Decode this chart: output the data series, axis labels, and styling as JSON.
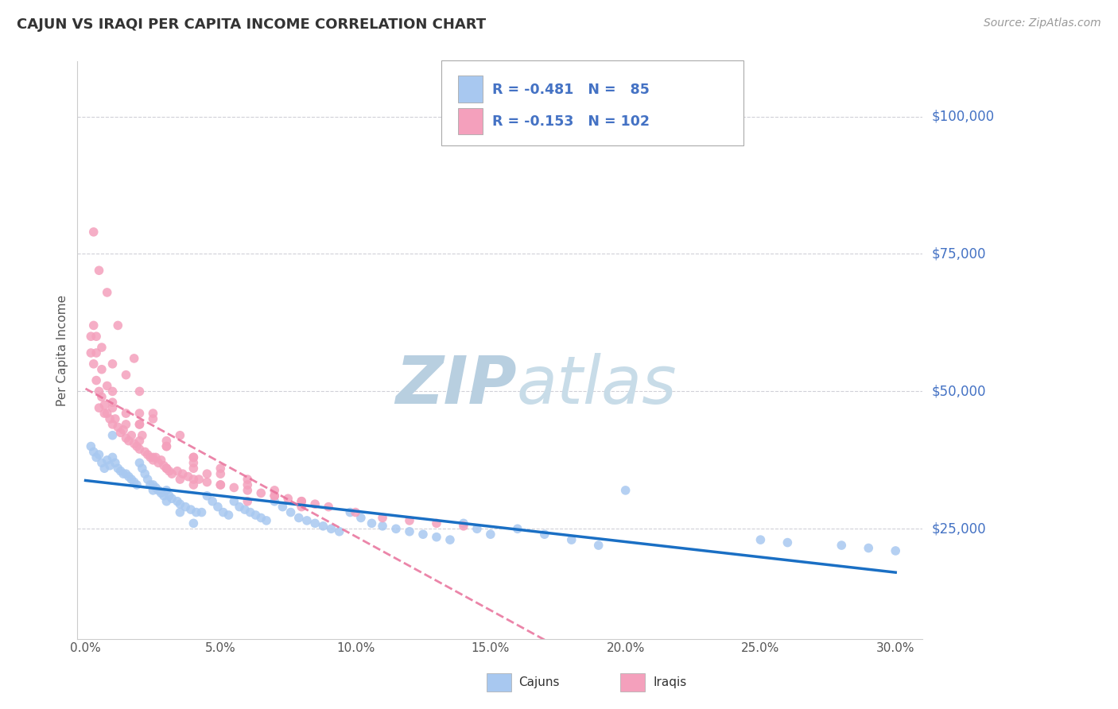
{
  "title": "CAJUN VS IRAQI PER CAPITA INCOME CORRELATION CHART",
  "source": "Source: ZipAtlas.com",
  "ylabel": "Per Capita Income",
  "xlabel_ticks": [
    "0.0%",
    "5.0%",
    "10.0%",
    "15.0%",
    "20.0%",
    "25.0%",
    "30.0%"
  ],
  "xlabel_vals": [
    0.0,
    5.0,
    10.0,
    15.0,
    20.0,
    25.0,
    30.0
  ],
  "xlim": [
    -0.3,
    31.0
  ],
  "ylim": [
    5000,
    110000
  ],
  "yticks": [
    25000,
    50000,
    75000,
    100000
  ],
  "ytick_labels": [
    "$25,000",
    "$50,000",
    "$75,000",
    "$100,000"
  ],
  "cajun_color": "#a8c8f0",
  "iraqi_color": "#f4a0bc",
  "cajun_line_color": "#1a6fc4",
  "iraqi_line_color": "#e8709a",
  "legend_text_color": "#4472c4",
  "axis_label_color": "#4472c4",
  "grid_color": "#d0d0d8",
  "watermark_zip": "ZIP",
  "watermark_atlas": "atlas",
  "watermark_color_zip": "#c0d4e8",
  "watermark_color_atlas": "#c8dce8",
  "R_cajun": -0.481,
  "N_cajun": 85,
  "R_iraqi": -0.153,
  "N_iraqi": 102,
  "cajun_x": [
    0.2,
    0.3,
    0.4,
    0.5,
    0.6,
    0.7,
    0.8,
    0.9,
    1.0,
    1.0,
    1.1,
    1.2,
    1.3,
    1.4,
    1.5,
    1.6,
    1.7,
    1.8,
    1.9,
    2.0,
    2.1,
    2.2,
    2.3,
    2.4,
    2.5,
    2.6,
    2.7,
    2.8,
    2.9,
    3.0,
    3.1,
    3.2,
    3.4,
    3.5,
    3.7,
    3.9,
    4.1,
    4.3,
    4.5,
    4.7,
    4.9,
    5.1,
    5.3,
    5.5,
    5.7,
    5.9,
    6.1,
    6.3,
    6.5,
    6.7,
    7.0,
    7.3,
    7.6,
    7.9,
    8.2,
    8.5,
    8.8,
    9.1,
    9.4,
    9.8,
    10.2,
    10.6,
    11.0,
    11.5,
    12.0,
    12.5,
    13.0,
    13.5,
    14.0,
    14.5,
    15.0,
    16.0,
    17.0,
    18.0,
    19.0,
    20.0,
    25.0,
    26.0,
    28.0,
    29.0,
    30.0,
    2.5,
    3.0,
    3.5,
    4.0
  ],
  "cajun_y": [
    40000,
    39000,
    38000,
    38500,
    37000,
    36000,
    37500,
    36500,
    42000,
    38000,
    37000,
    36000,
    35500,
    35000,
    35000,
    34500,
    34000,
    33500,
    33000,
    37000,
    36000,
    35000,
    34000,
    33000,
    33000,
    32500,
    32000,
    31500,
    31000,
    32000,
    31000,
    30500,
    30000,
    29500,
    29000,
    28500,
    28000,
    28000,
    31000,
    30000,
    29000,
    28000,
    27500,
    30000,
    29000,
    28500,
    28000,
    27500,
    27000,
    26500,
    30000,
    29000,
    28000,
    27000,
    26500,
    26000,
    25500,
    25000,
    24500,
    28000,
    27000,
    26000,
    25500,
    25000,
    24500,
    24000,
    23500,
    23000,
    26000,
    25000,
    24000,
    25000,
    24000,
    23000,
    22000,
    32000,
    23000,
    22500,
    22000,
    21500,
    21000,
    32000,
    30000,
    28000,
    26000
  ],
  "iraqi_x": [
    0.2,
    0.3,
    0.3,
    0.4,
    0.5,
    0.5,
    0.6,
    0.7,
    0.7,
    0.8,
    0.9,
    1.0,
    1.0,
    1.1,
    1.2,
    1.3,
    1.4,
    1.5,
    1.5,
    1.6,
    1.7,
    1.8,
    1.9,
    2.0,
    2.0,
    2.1,
    2.2,
    2.3,
    2.4,
    2.5,
    2.5,
    2.6,
    2.7,
    2.8,
    2.9,
    3.0,
    3.0,
    3.1,
    3.2,
    3.4,
    3.6,
    3.8,
    4.0,
    4.0,
    4.2,
    4.5,
    5.0,
    5.5,
    6.0,
    6.5,
    7.0,
    7.5,
    8.0,
    8.5,
    9.0,
    10.0,
    11.0,
    12.0,
    13.0,
    14.0,
    0.4,
    0.6,
    1.0,
    1.5,
    2.0,
    0.3,
    0.5,
    0.8,
    1.2,
    1.8,
    2.5,
    3.5,
    4.5,
    0.2,
    0.4,
    0.6,
    0.8,
    1.0,
    1.5,
    2.0,
    2.5,
    3.0,
    3.5,
    4.0,
    2.0,
    3.0,
    4.0,
    5.0,
    6.0,
    7.0,
    8.0,
    1.0,
    2.0,
    3.0,
    4.0,
    5.0,
    6.0,
    7.0,
    8.0,
    4.0,
    5.0,
    6.0
  ],
  "iraqi_y": [
    57000,
    62000,
    55000,
    52000,
    50000,
    47000,
    49000,
    47500,
    46000,
    46000,
    45000,
    50000,
    44000,
    45000,
    43500,
    42500,
    43000,
    46000,
    41500,
    41000,
    42000,
    40500,
    40000,
    46000,
    39500,
    42000,
    39000,
    38500,
    38000,
    46000,
    37500,
    38000,
    37000,
    37500,
    36500,
    40000,
    36000,
    35500,
    35000,
    35500,
    35000,
    34500,
    38000,
    34000,
    34000,
    33500,
    33000,
    32500,
    32000,
    31500,
    31000,
    30500,
    30000,
    29500,
    29000,
    28000,
    27000,
    26500,
    26000,
    25500,
    60000,
    58000,
    55000,
    53000,
    50000,
    79000,
    72000,
    68000,
    62000,
    56000,
    45000,
    42000,
    35000,
    60000,
    57000,
    54000,
    51000,
    48000,
    44000,
    41000,
    38000,
    36000,
    34000,
    33000,
    44000,
    40000,
    37000,
    35000,
    33000,
    31000,
    29000,
    47000,
    44000,
    41000,
    38000,
    36000,
    34000,
    32000,
    30000,
    36000,
    33000,
    30000
  ]
}
